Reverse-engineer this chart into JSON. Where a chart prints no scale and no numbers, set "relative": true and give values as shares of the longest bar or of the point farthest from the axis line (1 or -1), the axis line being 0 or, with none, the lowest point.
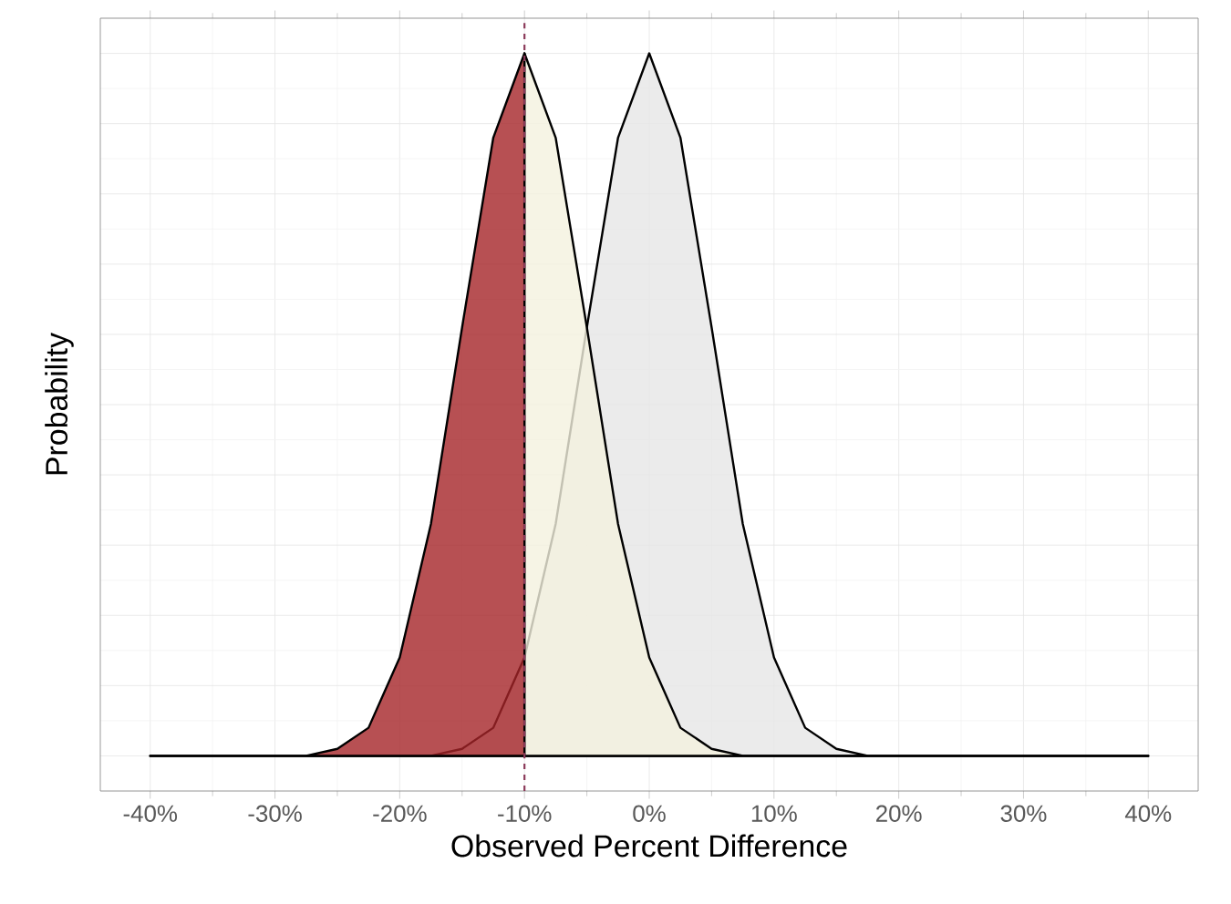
{
  "chart_data": {
    "type": "area",
    "relative": true,
    "xlabel": "Observed Percent Difference",
    "ylabel": "Probability",
    "xlim": [
      -44,
      44
    ],
    "xticks": [
      {
        "value": -40,
        "label": "-40%"
      },
      {
        "value": -30,
        "label": "-30%"
      },
      {
        "value": -20,
        "label": "-20%"
      },
      {
        "value": -10,
        "label": "-10%"
      },
      {
        "value": 0,
        "label": "0%"
      },
      {
        "value": 10,
        "label": "10%"
      },
      {
        "value": 20,
        "label": "20%"
      },
      {
        "value": 30,
        "label": "30%"
      },
      {
        "value": 40,
        "label": "40%"
      }
    ],
    "series": [
      {
        "color": "#e6e6e6",
        "x": [
          -40,
          -20,
          -17.5,
          -15,
          -12.5,
          -10,
          -7.5,
          -5,
          -2.5,
          0,
          2.5,
          5,
          7.5,
          10,
          12.5,
          15,
          17.5,
          20,
          40
        ],
        "values": [
          0,
          0,
          0,
          0.01,
          0.04,
          0.14,
          0.33,
          0.61,
          0.88,
          1,
          0.88,
          0.61,
          0.33,
          0.14,
          0.04,
          0.01,
          0,
          0,
          0
        ]
      },
      {
        "color": "#a52428",
        "x": [
          -40,
          -30,
          -27.5,
          -25,
          -22.5,
          -20,
          -17.5,
          -15,
          -12.5,
          -10
        ],
        "values": [
          0,
          0,
          0,
          0.01,
          0.04,
          0.14,
          0.33,
          0.61,
          0.88,
          1
        ]
      },
      {
        "color": "#f4f1de",
        "x": [
          -10,
          -7.5,
          -5,
          -2.5,
          0,
          2.5,
          5,
          7.5,
          10,
          40
        ],
        "values": [
          1,
          0.88,
          0.61,
          0.33,
          0.14,
          0.04,
          0.01,
          0,
          0,
          0
        ]
      }
    ],
    "ref_lines": [
      {
        "axis": "x",
        "value": -10,
        "color": "#8b3a5a",
        "line_style": "dashed"
      }
    ],
    "grid": true,
    "marker": "none",
    "line_style": "solid"
  }
}
